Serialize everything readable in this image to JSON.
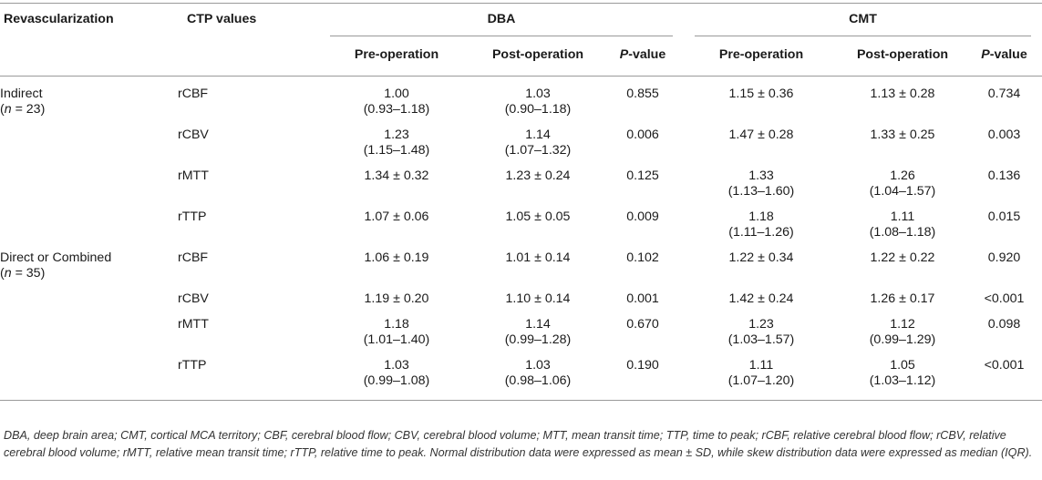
{
  "header": {
    "col_revascularization": "Revascularization",
    "col_ctp": "CTP values",
    "group_dba": "DBA",
    "group_cmt": "CMT",
    "pre_operation": "Pre-operation",
    "post_operation": "Post-operation",
    "pvalue_italic": "P",
    "pvalue_suffix": "-value"
  },
  "groups": [
    {
      "name": "Indirect",
      "n_italic": "n",
      "n_value": " = 23)",
      "n_prefix": "(",
      "rows": [
        {
          "ctp": "rCBF",
          "dba_pre": "1.00",
          "dba_pre_iqr": "(0.93–1.18)",
          "dba_post": "1.03",
          "dba_post_iqr": "(0.90–1.18)",
          "dba_p": "0.855",
          "cmt_pre": "1.15 ± 0.36",
          "cmt_pre_iqr": "",
          "cmt_post": "1.13 ± 0.28",
          "cmt_post_iqr": "",
          "cmt_p": "0.734"
        },
        {
          "ctp": "rCBV",
          "dba_pre": "1.23",
          "dba_pre_iqr": "(1.15–1.48)",
          "dba_post": "1.14",
          "dba_post_iqr": "(1.07–1.32)",
          "dba_p": "0.006",
          "cmt_pre": "1.47 ± 0.28",
          "cmt_pre_iqr": "",
          "cmt_post": "1.33 ± 0.25",
          "cmt_post_iqr": "",
          "cmt_p": "0.003"
        },
        {
          "ctp": "rMTT",
          "dba_pre": "1.34 ± 0.32",
          "dba_pre_iqr": "",
          "dba_post": "1.23 ± 0.24",
          "dba_post_iqr": "",
          "dba_p": "0.125",
          "cmt_pre": "1.33",
          "cmt_pre_iqr": "(1.13–1.60)",
          "cmt_post": "1.26",
          "cmt_post_iqr": "(1.04–1.57)",
          "cmt_p": "0.136"
        },
        {
          "ctp": "rTTP",
          "dba_pre": "1.07 ± 0.06",
          "dba_pre_iqr": "",
          "dba_post": "1.05 ± 0.05",
          "dba_post_iqr": "",
          "dba_p": "0.009",
          "cmt_pre": "1.18",
          "cmt_pre_iqr": "(1.11–1.26)",
          "cmt_post": "1.11",
          "cmt_post_iqr": "(1.08–1.18)",
          "cmt_p": "0.015"
        }
      ]
    },
    {
      "name": "Direct or Combined",
      "n_italic": "n",
      "n_value": " = 35)",
      "n_prefix": "(",
      "rows": [
        {
          "ctp": "rCBF",
          "dba_pre": "1.06 ± 0.19",
          "dba_pre_iqr": "",
          "dba_post": "1.01 ± 0.14",
          "dba_post_iqr": "",
          "dba_p": "0.102",
          "cmt_pre": "1.22 ± 0.34",
          "cmt_pre_iqr": "",
          "cmt_post": "1.22 ± 0.22",
          "cmt_post_iqr": "",
          "cmt_p": "0.920"
        },
        {
          "ctp": "rCBV",
          "dba_pre": "1.19 ± 0.20",
          "dba_pre_iqr": "",
          "dba_post": "1.10 ± 0.14",
          "dba_post_iqr": "",
          "dba_p": "0.001",
          "cmt_pre": "1.42 ± 0.24",
          "cmt_pre_iqr": "",
          "cmt_post": "1.26 ± 0.17",
          "cmt_post_iqr": "",
          "cmt_p": "<0.001"
        },
        {
          "ctp": "rMTT",
          "dba_pre": "1.18",
          "dba_pre_iqr": "(1.01–1.40)",
          "dba_post": "1.14",
          "dba_post_iqr": "(0.99–1.28)",
          "dba_p": "0.670",
          "cmt_pre": "1.23",
          "cmt_pre_iqr": "(1.03–1.57)",
          "cmt_post": "1.12",
          "cmt_post_iqr": "(0.99–1.29)",
          "cmt_p": "0.098"
        },
        {
          "ctp": "rTTP",
          "dba_pre": "1.03",
          "dba_pre_iqr": "(0.99–1.08)",
          "dba_post": "1.03",
          "dba_post_iqr": "(0.98–1.06)",
          "dba_p": "0.190",
          "cmt_pre": "1.11",
          "cmt_pre_iqr": "(1.07–1.20)",
          "cmt_post": "1.05",
          "cmt_post_iqr": "(1.03–1.12)",
          "cmt_p": "<0.001"
        }
      ]
    }
  ],
  "footnote": "DBA, deep brain area; CMT, cortical MCA territory; CBF, cerebral blood flow; CBV, cerebral blood volume; MTT, mean transit time; TTP, time to peak; rCBF, relative cerebral blood flow; rCBV, relative cerebral blood volume; rMTT, relative mean transit time; rTTP, relative time to peak. Normal distribution data were expressed as mean ± SD, while skew distribution data were expressed as median (IQR)."
}
